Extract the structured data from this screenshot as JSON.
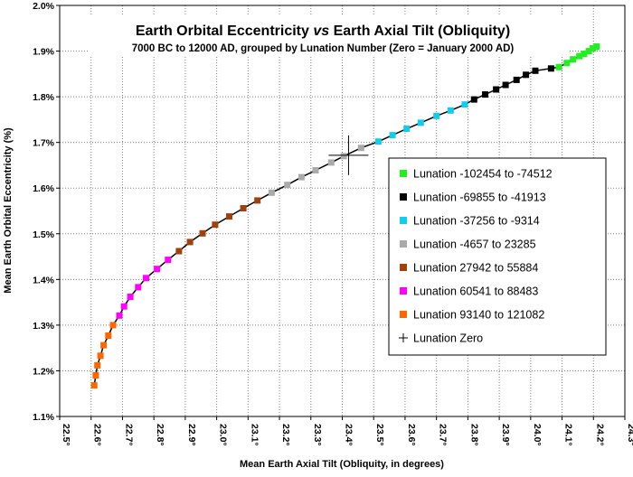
{
  "chart_data": {
    "type": "scatter",
    "title_part1": "Earth Orbital Eccentricity ",
    "title_italic": "vs",
    "title_part2": " Earth Axial Tilt (Obliquity)",
    "subtitle": "7000 BC to 12000 AD, grouped by Lunation Number (Zero = January 2000 AD)",
    "xlabel": "Mean Earth Axial Tilt (Obliquity, in degrees)",
    "ylabel": "Mean Earth Orbital Eccentricity (%)",
    "xlim": [
      22.5,
      24.3
    ],
    "ylim": [
      1.1,
      2.0
    ],
    "x_tick_labels": [
      "22.5°",
      "22.6°",
      "22.7°",
      "22.8°",
      "22.9°",
      "23.0°",
      "23.1°",
      "23.2°",
      "23.3°",
      "23.4°",
      "23.5°",
      "23.6°",
      "23.7°",
      "23.8°",
      "23.9°",
      "24.0°",
      "24.1°",
      "24.2°",
      "24.3°"
    ],
    "y_tick_labels": [
      "1.1%",
      "1.2%",
      "1.3%",
      "1.4%",
      "1.5%",
      "1.6%",
      "1.7%",
      "1.8%",
      "1.9%",
      "2.0%"
    ],
    "grid": true,
    "legend_position": "right",
    "series": [
      {
        "name": "Lunation -102454 to -74512",
        "color": "#22ee22",
        "points": [
          [
            24.09,
            1.865
          ],
          [
            24.115,
            1.874
          ],
          [
            24.135,
            1.882
          ],
          [
            24.155,
            1.889
          ],
          [
            24.17,
            1.894
          ],
          [
            24.185,
            1.9
          ],
          [
            24.198,
            1.906
          ],
          [
            24.21,
            1.91
          ]
        ]
      },
      {
        "name": "Lunation -69855 to -41913",
        "color": "#000000",
        "points": [
          [
            23.82,
            1.794
          ],
          [
            23.855,
            1.805
          ],
          [
            23.89,
            1.816
          ],
          [
            23.92,
            1.826
          ],
          [
            23.955,
            1.837
          ],
          [
            23.985,
            1.848
          ],
          [
            24.015,
            1.857
          ],
          [
            24.065,
            1.862
          ]
        ]
      },
      {
        "name": "Lunation -37256 to -9314",
        "color": "#11ccee",
        "points": [
          [
            23.515,
            1.702
          ],
          [
            23.56,
            1.716
          ],
          [
            23.605,
            1.73
          ],
          [
            23.65,
            1.743
          ],
          [
            23.7,
            1.758
          ],
          [
            23.745,
            1.77
          ],
          [
            23.79,
            1.783
          ]
        ]
      },
      {
        "name": "Lunation -4657 to 23285",
        "color": "#aaaaaa",
        "points": [
          [
            23.175,
            1.59
          ],
          [
            23.225,
            1.607
          ],
          [
            23.27,
            1.624
          ],
          [
            23.315,
            1.639
          ],
          [
            23.365,
            1.656
          ],
          [
            23.405,
            1.67
          ],
          [
            23.46,
            1.688
          ]
        ]
      },
      {
        "name": "Lunation 27942 to 55884",
        "color": "#a0400a",
        "points": [
          [
            22.88,
            1.462
          ],
          [
            22.915,
            1.482
          ],
          [
            22.955,
            1.501
          ],
          [
            22.995,
            1.52
          ],
          [
            23.04,
            1.538
          ],
          [
            23.085,
            1.556
          ],
          [
            23.13,
            1.573
          ]
        ]
      },
      {
        "name": "Lunation 60541 to 88483",
        "color": "#ff00ff",
        "points": [
          [
            22.69,
            1.321
          ],
          [
            22.705,
            1.341
          ],
          [
            22.725,
            1.362
          ],
          [
            22.75,
            1.383
          ],
          [
            22.775,
            1.403
          ],
          [
            22.81,
            1.423
          ],
          [
            22.845,
            1.443
          ]
        ]
      },
      {
        "name": "Lunation 93140 to 121082",
        "color": "#ff6600",
        "points": [
          [
            22.61,
            1.168
          ],
          [
            22.615,
            1.19
          ],
          [
            22.62,
            1.212
          ],
          [
            22.63,
            1.233
          ],
          [
            22.64,
            1.256
          ],
          [
            22.655,
            1.277
          ],
          [
            22.67,
            1.3
          ]
        ]
      }
    ],
    "zero_marker": {
      "name": "Lunation Zero",
      "x": 23.42,
      "y": 1.672
    }
  }
}
